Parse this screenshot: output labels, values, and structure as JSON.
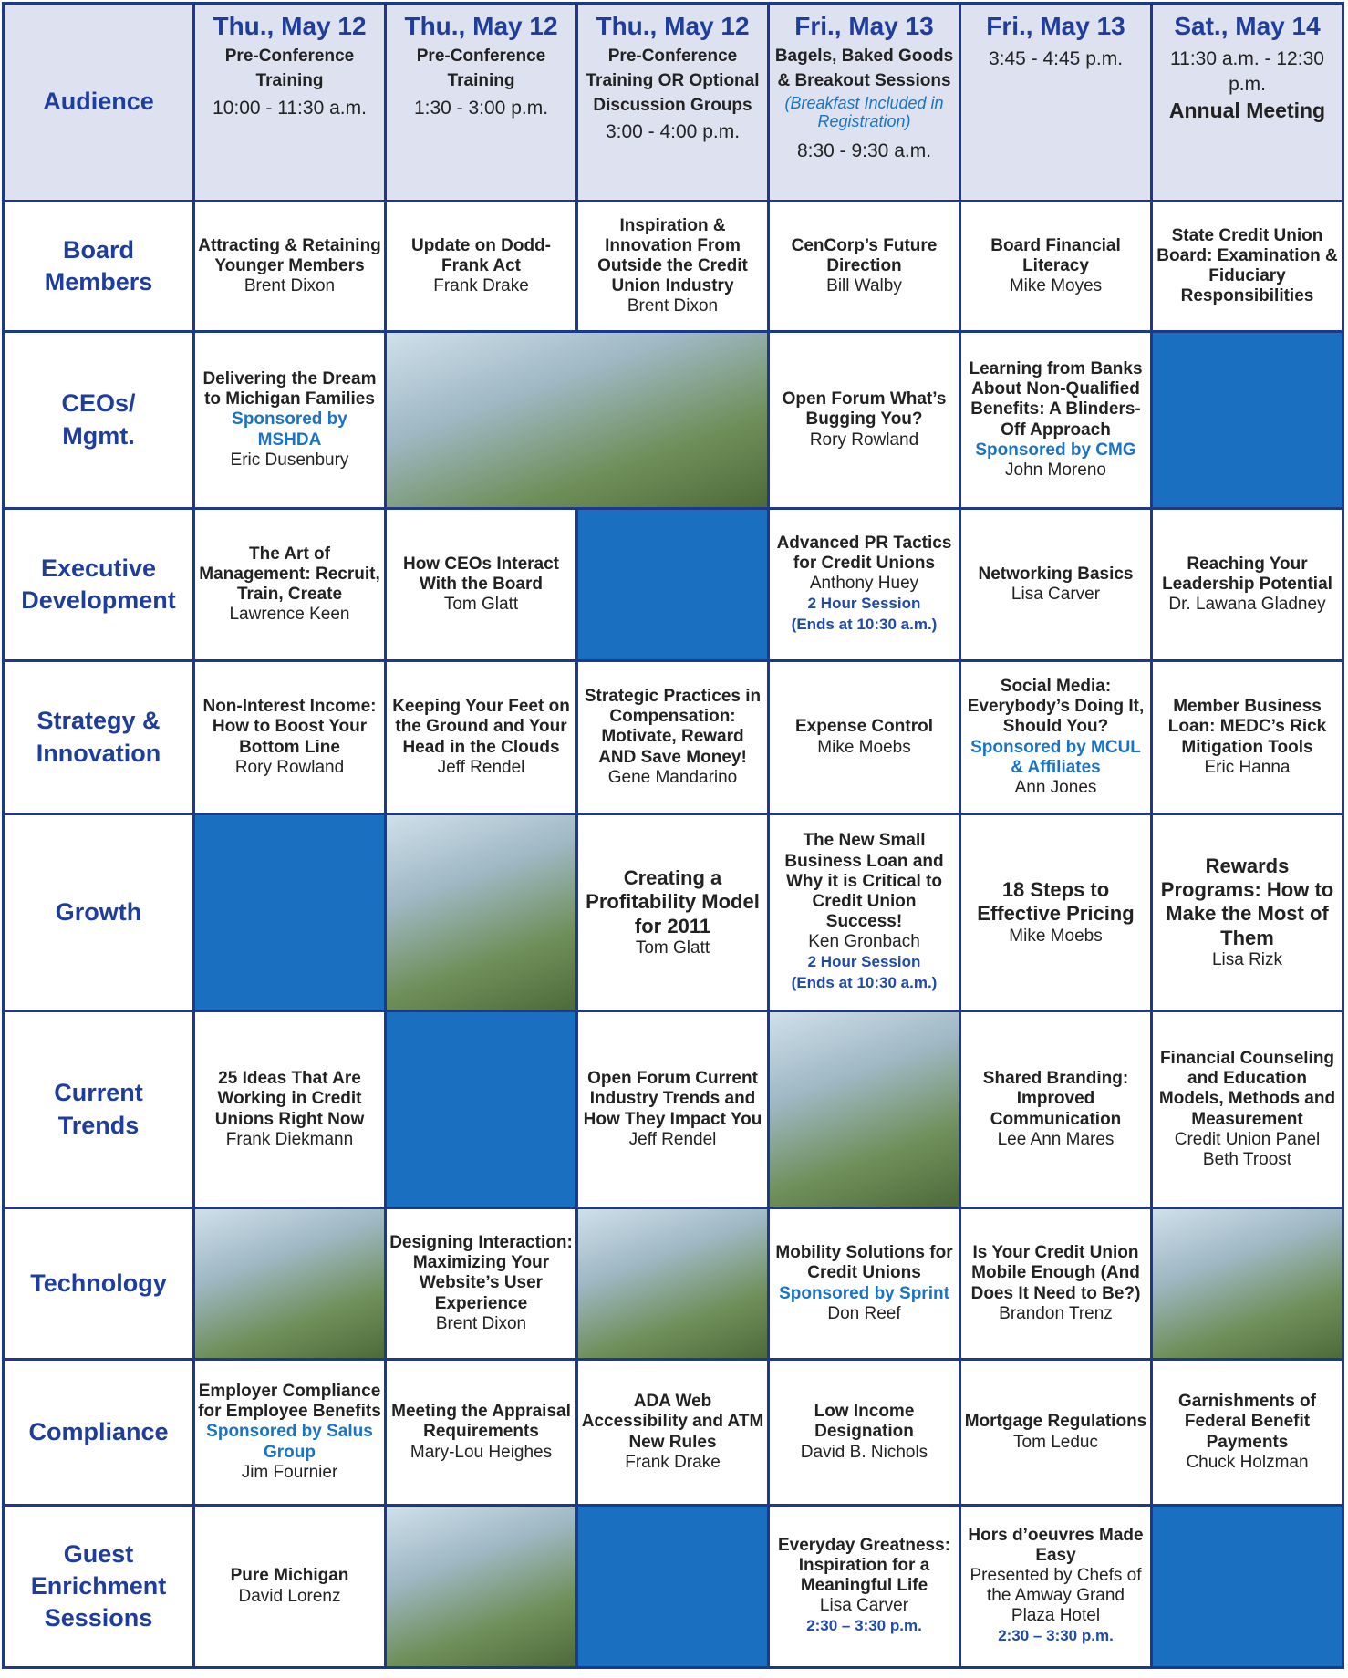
{
  "header": {
    "corner": "Audience",
    "columns": [
      {
        "day": "Thu., May 12",
        "parts": [
          {
            "style": "bold",
            "text": "Pre-Conference Training"
          },
          {
            "style": "plain",
            "text": "10:00 - 11:30 a.m."
          }
        ]
      },
      {
        "day": "Thu., May 12",
        "parts": [
          {
            "style": "bold",
            "text": "Pre-Conference Training"
          },
          {
            "style": "plain",
            "text": "1:30 - 3:00 p.m."
          }
        ]
      },
      {
        "day": "Thu., May 12",
        "parts": [
          {
            "style": "bold",
            "text": "Pre-Conference Training OR Optional Discussion Groups"
          },
          {
            "style": "plain",
            "text": "3:00 - 4:00 p.m."
          }
        ]
      },
      {
        "day": "Fri., May 13",
        "parts": [
          {
            "style": "bold",
            "text": "Bagels, Baked Goods & Breakout Sessions"
          },
          {
            "style": "italic",
            "text": "(Breakfast Included in Registration)"
          },
          {
            "style": "plain",
            "text": "8:30 - 9:30 a.m."
          }
        ]
      },
      {
        "day": "Fri., May 13",
        "parts": [
          {
            "style": "plain",
            "text": "3:45 - 4:45 p.m."
          }
        ]
      },
      {
        "day": "Sat., May 14",
        "parts": [
          {
            "style": "plain",
            "text": "11:30 a.m. - 12:30 p.m."
          },
          {
            "style": "big",
            "text": "Annual Meeting"
          }
        ]
      }
    ]
  },
  "rows": [
    {
      "label": [
        "Board",
        "Members"
      ],
      "cells": [
        [
          {
            "style": "title",
            "text": "Attracting & Retaining Younger Members"
          },
          {
            "style": "speaker",
            "text": "Brent Dixon"
          }
        ],
        [
          {
            "style": "title",
            "text": "Update on Dodd-Frank Act"
          },
          {
            "style": "speaker",
            "text": "Frank Drake"
          }
        ],
        [
          {
            "style": "title",
            "text": "Inspiration & Innovation From Outside the Credit Union Industry"
          },
          {
            "style": "speaker",
            "text": "Brent Dixon"
          }
        ],
        [
          {
            "style": "title",
            "text": "CenCorp’s Future Direction"
          },
          {
            "style": "speaker",
            "text": "Bill Walby"
          }
        ],
        [
          {
            "style": "title",
            "text": "Board Financial Literacy"
          },
          {
            "style": "speaker",
            "text": "Mike Moyes"
          }
        ],
        [
          {
            "style": "title",
            "text": "State Credit Union Board: Examination & Fiduciary Responsibilities"
          }
        ]
      ]
    },
    {
      "label": [
        "CEOs/",
        "Mgmt."
      ],
      "cells": [
        [
          {
            "style": "title",
            "text": "Delivering the Dream to Michigan Families"
          },
          {
            "style": "sponsor",
            "text": "Sponsored by MSHDA"
          },
          {
            "style": "speaker",
            "text": "Eric Dusenbury"
          }
        ],
        {
          "photo": true,
          "span": 2
        },
        [
          {
            "style": "title",
            "text": "Open Forum What’s Bugging You?"
          },
          {
            "style": "speaker",
            "text": "Rory Rowland"
          }
        ],
        [
          {
            "style": "title",
            "text": "Learning from Banks About Non-Qualified Benefits: A Blinders-Off Approach"
          },
          {
            "style": "sponsor",
            "text": "Sponsored by CMG"
          },
          {
            "style": "speaker",
            "text": "John Moreno"
          }
        ],
        null
      ]
    },
    {
      "label": [
        "Executive",
        "Development"
      ],
      "cells": [
        [
          {
            "style": "title",
            "text": "The Art of Management: Recruit, Train, Create"
          },
          {
            "style": "speaker",
            "text": "Lawrence Keen"
          }
        ],
        [
          {
            "style": "title",
            "text": "How CEOs Interact With the Board"
          },
          {
            "style": "speaker",
            "text": "Tom Glatt"
          }
        ],
        null,
        [
          {
            "style": "title",
            "text": "Advanced PR Tactics for Credit Unions"
          },
          {
            "style": "speaker",
            "text": "Anthony Huey"
          },
          {
            "style": "note",
            "text": "2 Hour Session"
          },
          {
            "style": "note",
            "text": "(Ends at 10:30 a.m.)"
          }
        ],
        [
          {
            "style": "title",
            "text": "Networking Basics"
          },
          {
            "style": "speaker",
            "text": "Lisa Carver"
          }
        ],
        [
          {
            "style": "title",
            "text": "Reaching Your Leadership Potential"
          },
          {
            "style": "speaker",
            "text": "Dr. Lawana Gladney"
          }
        ]
      ]
    },
    {
      "label": [
        "Strategy &",
        "Innovation"
      ],
      "cells": [
        [
          {
            "style": "title",
            "text": "Non-Interest Income: How to Boost Your Bottom Line"
          },
          {
            "style": "speaker",
            "text": "Rory Rowland"
          }
        ],
        [
          {
            "style": "title",
            "text": "Keeping Your Feet on the Ground and Your Head in the Clouds"
          },
          {
            "style": "speaker",
            "text": "Jeff Rendel"
          }
        ],
        [
          {
            "style": "title",
            "text": "Strategic Practices in Compensation: Motivate, Reward AND Save Money!"
          },
          {
            "style": "speaker",
            "text": "Gene Mandarino"
          }
        ],
        [
          {
            "style": "title",
            "text": "Expense Control"
          },
          {
            "style": "speaker",
            "text": "Mike Moebs"
          }
        ],
        [
          {
            "style": "title",
            "text": "Social Media: Everybody’s Doing It, Should You?"
          },
          {
            "style": "sponsor",
            "text": "Sponsored by MCUL & Affiliates"
          },
          {
            "style": "speaker",
            "text": "Ann Jones"
          }
        ],
        [
          {
            "style": "title",
            "text": "Member Business Loan: MEDC’s Rick Mitigation Tools"
          },
          {
            "style": "speaker",
            "text": "Eric Hanna"
          }
        ]
      ]
    },
    {
      "label": [
        "Growth"
      ],
      "cells": [
        null,
        {
          "photo": true
        },
        [
          {
            "style": "bigtitle",
            "text": "Creating a Profitability Model for 2011"
          },
          {
            "style": "speaker",
            "text": "Tom Glatt"
          }
        ],
        [
          {
            "style": "title",
            "text": "The New Small Business Loan and Why it is Critical to Credit Union Success!"
          },
          {
            "style": "speaker",
            "text": "Ken Gronbach"
          },
          {
            "style": "note",
            "text": "2 Hour Session"
          },
          {
            "style": "note",
            "text": "(Ends at 10:30 a.m.)"
          }
        ],
        [
          {
            "style": "bigtitle",
            "text": "18 Steps to Effective Pricing"
          },
          {
            "style": "speaker",
            "text": "Mike Moebs"
          }
        ],
        [
          {
            "style": "bigtitle",
            "text": "Rewards Programs: How to Make the Most of Them"
          },
          {
            "style": "speaker",
            "text": "Lisa Rizk"
          }
        ]
      ]
    },
    {
      "label": [
        "Current",
        "Trends"
      ],
      "cells": [
        [
          {
            "style": "title",
            "text": "25 Ideas That Are Working in Credit Unions Right Now"
          },
          {
            "style": "speaker",
            "text": "Frank Diekmann"
          }
        ],
        null,
        [
          {
            "style": "title",
            "text": "Open Forum Current Industry Trends and How They Impact You"
          },
          {
            "style": "speaker",
            "text": "Jeff Rendel"
          }
        ],
        {
          "photo": true
        },
        [
          {
            "style": "title",
            "text": "Shared Branding: Improved Communication"
          },
          {
            "style": "speaker",
            "text": "Lee Ann Mares"
          }
        ],
        [
          {
            "style": "title",
            "text": "Financial Counseling and Education Models, Methods and Measurement"
          },
          {
            "style": "speaker",
            "text": "Credit Union Panel"
          },
          {
            "style": "speaker",
            "text": "Beth Troost"
          }
        ]
      ]
    },
    {
      "label": [
        "Technology"
      ],
      "cells": [
        {
          "photo": true
        },
        [
          {
            "style": "title",
            "text": "Designing Interaction: Maximizing Your Website’s User Experience"
          },
          {
            "style": "speaker",
            "text": "Brent Dixon"
          }
        ],
        {
          "photo": true
        },
        [
          {
            "style": "title",
            "text": "Mobility Solutions for Credit Unions"
          },
          {
            "style": "sponsor",
            "text": "Sponsored by Sprint"
          },
          {
            "style": "speaker",
            "text": "Don Reef"
          }
        ],
        [
          {
            "style": "title",
            "text": "Is Your Credit Union Mobile Enough (And Does It Need to Be?)"
          },
          {
            "style": "speaker",
            "text": "Brandon Trenz"
          }
        ],
        {
          "photo": true
        }
      ]
    },
    {
      "label": [
        "Compliance"
      ],
      "cells": [
        [
          {
            "style": "title",
            "text": "Employer Compliance for Employee Benefits"
          },
          {
            "style": "sponsor",
            "text": "Sponsored by Salus Group"
          },
          {
            "style": "speaker",
            "text": "Jim Fournier"
          }
        ],
        [
          {
            "style": "title",
            "text": "Meeting the Appraisal Requirements"
          },
          {
            "style": "speaker",
            "text": "Mary-Lou Heighes"
          }
        ],
        [
          {
            "style": "title",
            "text": "ADA Web Accessibility and ATM New Rules"
          },
          {
            "style": "speaker",
            "text": "Frank Drake"
          }
        ],
        [
          {
            "style": "title",
            "text": "Low Income Designation"
          },
          {
            "style": "speaker",
            "text": "David B. Nichols"
          }
        ],
        [
          {
            "style": "title",
            "text": "Mortgage Regulations"
          },
          {
            "style": "speaker",
            "text": "Tom Leduc"
          }
        ],
        [
          {
            "style": "title",
            "text": "Garnishments of Federal Benefit Payments"
          },
          {
            "style": "speaker",
            "text": "Chuck Holzman"
          }
        ]
      ]
    },
    {
      "label": [
        "Guest",
        "Enrichment",
        "Sessions"
      ],
      "cells": [
        [
          {
            "style": "title",
            "text": "Pure Michigan"
          },
          {
            "style": "speaker",
            "text": "David Lorenz"
          }
        ],
        {
          "photo": true
        },
        null,
        [
          {
            "style": "title",
            "text": "Everyday Greatness: Inspiration for a Meaningful Life"
          },
          {
            "style": "speaker",
            "text": "Lisa Carver"
          },
          {
            "style": "note",
            "text": "2:30 – 3:30 p.m."
          }
        ],
        [
          {
            "style": "title",
            "text": "Hors d’oeuvres Made Easy"
          },
          {
            "style": "speaker",
            "text": "Presented by Chefs of the Amway Grand Plaza Hotel"
          },
          {
            "style": "note",
            "text": "2:30 – 3:30 p.m."
          }
        ],
        null
      ]
    }
  ]
}
